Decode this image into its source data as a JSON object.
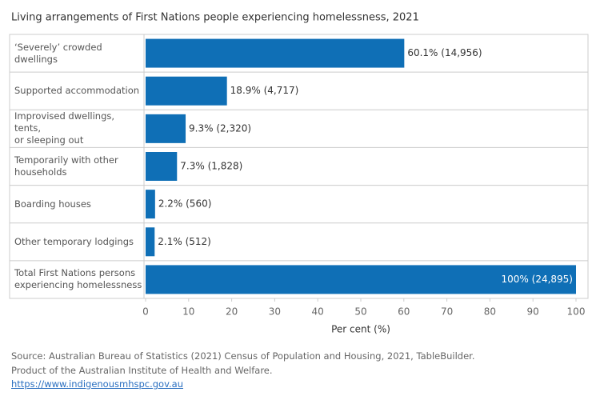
{
  "chart_data": {
    "type": "bar",
    "orientation": "horizontal",
    "title": "Living arrangements of First Nations people experiencing homelessness, 2021",
    "categories": [
      "‘Severely’ crowded\ndwellings",
      "Supported accommodation",
      "Improvised dwellings, tents,\nor sleeping out",
      "Temporarily with other\nhouseholds",
      "Boarding houses",
      "Other temporary lodgings",
      "Total First Nations persons\nexperiencing homelessness"
    ],
    "values": [
      60.1,
      18.9,
      9.3,
      7.3,
      2.2,
      2.1,
      100
    ],
    "value_labels": [
      "60.1% (14,956)",
      "18.9% (4,717)",
      "9.3% (2,320)",
      "7.3% (1,828)",
      "2.2% (560)",
      "2.1% (512)",
      "100% (24,895)"
    ],
    "color": "#0f6fb6",
    "xlim": [
      0,
      100
    ],
    "xticks": [
      0,
      10,
      20,
      30,
      40,
      50,
      60,
      70,
      80,
      90,
      100
    ],
    "x_label": "Per cent (%)",
    "notes": [
      "Source: Australian Bureau of Statistics (2021) Census of Population and Housing, 2021, TableBuilder.",
      "Product of the Australian Institute of Health and Welfare."
    ],
    "link": "https://www.indigenousmhspc.gov.au"
  }
}
